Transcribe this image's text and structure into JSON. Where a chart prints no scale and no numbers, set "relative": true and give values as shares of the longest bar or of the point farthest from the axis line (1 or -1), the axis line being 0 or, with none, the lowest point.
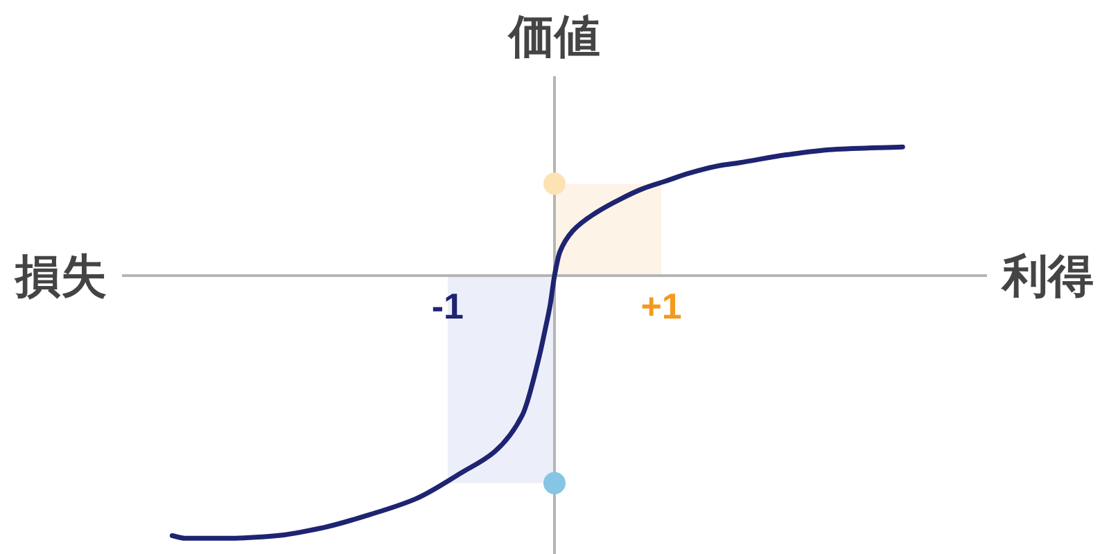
{
  "chart_data": {
    "type": "line",
    "relative": true,
    "ylabel": "価値",
    "xlabel": "利得",
    "annotations": [
      "損失"
    ],
    "xlim": [
      -4.05,
      4.05
    ],
    "xticks": [
      -1,
      {
        "value": 1,
        "label": "+1"
      }
    ],
    "series": [
      {
        "type": "bar",
        "x": [
          -0.5,
          0.5
        ],
        "values": [
          -0.79,
          0.35
        ],
        "colors": [
          "#eceffa",
          "#fef3e7"
        ]
      },
      {
        "color": "#1e2471",
        "x": [
          -3.58,
          -3.46,
          -3.03,
          -2.6,
          -2.17,
          -1.73,
          -1.3,
          -0.87,
          -0.56,
          -0.3,
          -0.15,
          -0.09,
          -0.04,
          0,
          0.05,
          0.17,
          0.39,
          0.61,
          0.82,
          1.04,
          1.26,
          1.56,
          1.73,
          2.17,
          2.6,
          3.26
        ],
        "values": [
          -0.99,
          -1.0,
          -1.0,
          -0.99,
          -0.96,
          -0.91,
          -0.85,
          -0.75,
          -0.67,
          -0.53,
          -0.32,
          -0.21,
          -0.11,
          0,
          0.09,
          0.17,
          0.24,
          0.29,
          0.33,
          0.36,
          0.39,
          0.42,
          0.43,
          0.46,
          0.48,
          0.49
        ]
      },
      {
        "type": "scatter",
        "marker": "circle",
        "x": [
          0,
          0
        ],
        "values": [
          0.35,
          -0.79
        ],
        "colors": [
          "#fde3b3",
          "#86c5e3"
        ]
      }
    ]
  }
}
